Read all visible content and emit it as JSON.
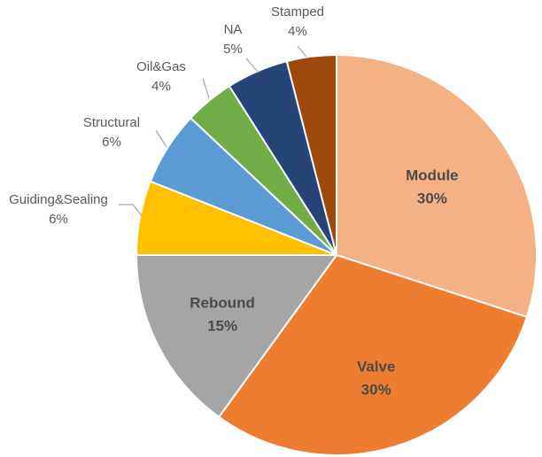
{
  "chart_data": {
    "type": "pie",
    "title": "",
    "slices": [
      {
        "label": "Module",
        "value": 30,
        "display": "30%",
        "color": "#F4B183",
        "label_position": "inside"
      },
      {
        "label": "Valve",
        "value": 30,
        "display": "30%",
        "color": "#ED7D31",
        "label_position": "inside"
      },
      {
        "label": "Rebound",
        "value": 15,
        "display": "15%",
        "color": "#A5A5A5",
        "label_position": "inside"
      },
      {
        "label": "Guiding&Sealing",
        "value": 6,
        "display": "6%",
        "color": "#FFC000",
        "label_position": "outside"
      },
      {
        "label": "Structural",
        "value": 6,
        "display": "6%",
        "color": "#5B9BD5",
        "label_position": "outside"
      },
      {
        "label": "Oil&Gas",
        "value": 4,
        "display": "4%",
        "color": "#70AD47",
        "label_position": "outside"
      },
      {
        "label": "NA",
        "value": 5,
        "display": "5%",
        "color": "#264478",
        "label_position": "outside"
      },
      {
        "label": "Stamped",
        "value": 4,
        "display": "4%",
        "color": "#9E480E",
        "label_position": "outside"
      }
    ],
    "start_angle": "12 o'clock",
    "direction": "clockwise",
    "legend": "none"
  }
}
